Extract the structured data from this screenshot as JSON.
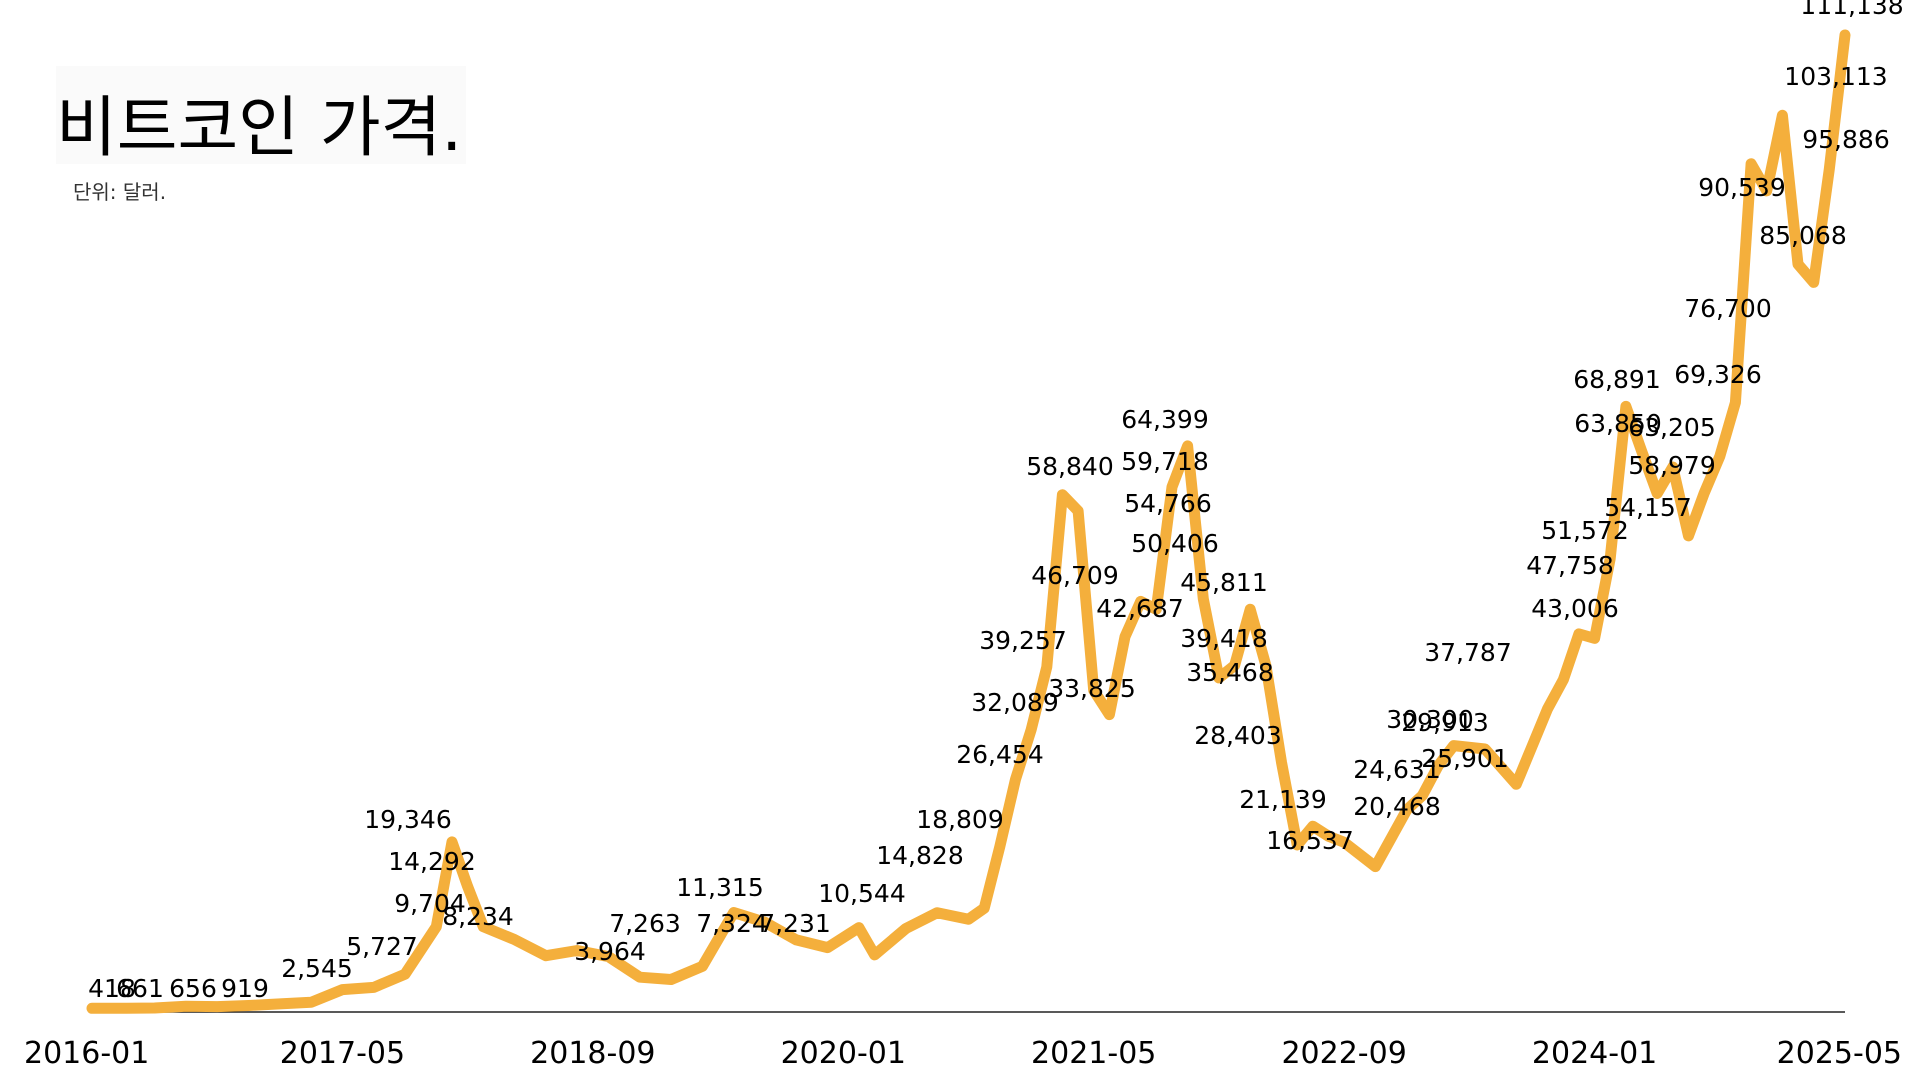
{
  "chart_data": {
    "type": "line",
    "title": "비트코인 가격.",
    "subtitle": "단위: 달러.",
    "xlabel": "",
    "ylabel": "",
    "x_range": [
      "2016-01",
      "2025-05"
    ],
    "ylim": [
      0,
      111138
    ],
    "grid": false,
    "line_color": "#F4AF3C",
    "x_ticks": [
      "2016-01",
      "2017-05",
      "2018-09",
      "2020-01",
      "2021-05",
      "2022-09",
      "2024-01",
      "2025-05"
    ],
    "series": [
      {
        "x": [
          "2016-01",
          "2016-03",
          "2016-05",
          "2016-07",
          "2016-09",
          "2016-11",
          "2017-01",
          "2017-03",
          "2017-05",
          "2017-07",
          "2017-09",
          "2017-11",
          "2017-12",
          "2018-01",
          "2018-02",
          "2018-04",
          "2018-06",
          "2018-08",
          "2018-10",
          "2018-12",
          "2019-02",
          "2019-04",
          "2019-06",
          "2019-08",
          "2019-10",
          "2019-12",
          "2020-02",
          "2020-03",
          "2020-05",
          "2020-07",
          "2020-09",
          "2020-10",
          "2020-11",
          "2020-12",
          "2021-01",
          "2021-02",
          "2021-03",
          "2021-04",
          "2021-05",
          "2021-06",
          "2021-07",
          "2021-08",
          "2021-09",
          "2021-10",
          "2021-11",
          "2021-12",
          "2022-01",
          "2022-02",
          "2022-03",
          "2022-04",
          "2022-05",
          "2022-06",
          "2022-07",
          "2022-08",
          "2022-09",
          "2022-11",
          "2023-01",
          "2023-02",
          "2023-03",
          "2023-04",
          "2023-06",
          "2023-08",
          "2023-10",
          "2023-11",
          "2023-12",
          "2024-01",
          "2024-02",
          "2024-03",
          "2024-04",
          "2024-05",
          "2024-06",
          "2024-07",
          "2024-08",
          "2024-09",
          "2024-10",
          "2024-11",
          "2024-12",
          "2025-01",
          "2025-02",
          "2025-03",
          "2025-04",
          "2025-05"
        ],
        "values": [
          418,
          420,
          450,
          661,
          610,
          740,
          919,
          1100,
          2545,
          2800,
          4300,
          9704,
          19346,
          14292,
          9704,
          8234,
          6400,
          7000,
          6300,
          3964,
          3700,
          5200,
          11315,
          10200,
          8200,
          7324,
          9600,
          6500,
          9500,
          11300,
          10544,
          11800,
          18809,
          26454,
          32089,
          39257,
          58840,
          57000,
          36600,
          33825,
          42687,
          46709,
          45811,
          59718,
          64399,
          47000,
          38000,
          39418,
          45811,
          39418,
          28403,
          19000,
          21139,
          20000,
          19300,
          16537,
          23000,
          24631,
          28000,
          30300,
          29913,
          25901,
          34500,
          37787,
          43006,
          42500,
          51572,
          68891,
          63850,
          58979,
          62000,
          54157,
          59000,
          63205,
          69326,
          96500,
          93400,
          102000,
          85068,
          83000,
          95886,
          111138
        ]
      }
    ],
    "data_labels": [
      "418",
      "661",
      "656",
      "919",
      "2,545",
      "5,727",
      "19,346",
      "14,292",
      "9,704",
      "8,234",
      "3,964",
      "7,263",
      "11,315",
      "7,324",
      "7,231",
      "10,544",
      "14,828",
      "18,809",
      "26,454",
      "32,089",
      "39,257",
      "58,840",
      "46,709",
      "33,825",
      "42,687",
      "64,399",
      "59,718",
      "54,766",
      "50,406",
      "45,811",
      "39,418",
      "35,468",
      "28,403",
      "21,139",
      "16,537",
      "24,631",
      "20,468",
      "30,300",
      "29,913",
      "25,901",
      "37,787",
      "43,006",
      "47,758",
      "51,572",
      "68,891",
      "63,850",
      "63,205",
      "58,979",
      "54,157",
      "69,326",
      "76,700",
      "90,539",
      "85,068",
      "95,886",
      "103,113",
      "111,138"
    ]
  }
}
